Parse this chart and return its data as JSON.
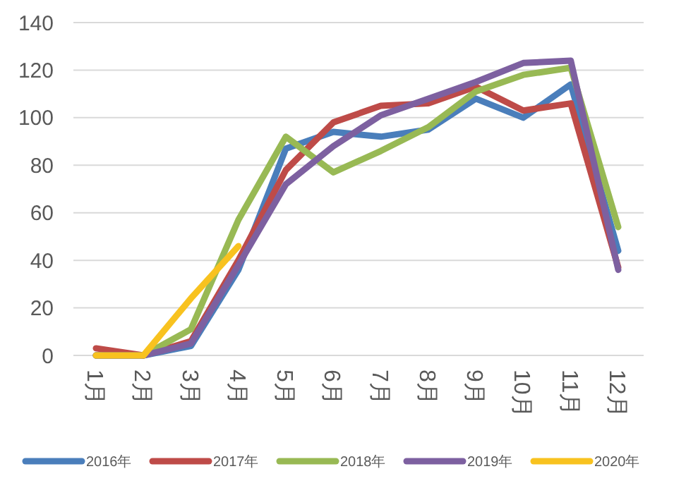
{
  "chart_data": {
    "type": "line",
    "categories": [
      "1月",
      "2月",
      "3月",
      "4月",
      "5月",
      "6月",
      "7月",
      "8月",
      "9月",
      "10月",
      "11月",
      "12月"
    ],
    "series": [
      {
        "name": "2016年",
        "color": "#4a7ebb",
        "values": [
          0,
          0,
          4,
          36,
          87,
          94,
          92,
          95,
          108,
          100,
          114,
          44
        ]
      },
      {
        "name": "2017年",
        "color": "#be4b48",
        "values": [
          3,
          0,
          6,
          40,
          78,
          98,
          105,
          106,
          113,
          103,
          106,
          37
        ]
      },
      {
        "name": "2018年",
        "color": "#98b954",
        "values": [
          0,
          0,
          11,
          57,
          92,
          77,
          86,
          96,
          111,
          118,
          121,
          54
        ]
      },
      {
        "name": "2019年",
        "color": "#7d60a0",
        "values": [
          0,
          0,
          5,
          38,
          72,
          88,
          101,
          108,
          115,
          123,
          124,
          36
        ]
      },
      {
        "name": "2020年",
        "color": "#f8c21f",
        "values": [
          0,
          0,
          24,
          46,
          null,
          null,
          null,
          null,
          null,
          null,
          null,
          null
        ]
      }
    ],
    "ylim": [
      0,
      140
    ],
    "yticks": [
      0,
      20,
      40,
      60,
      80,
      100,
      120,
      140
    ],
    "grid": "y",
    "legend": "bottom",
    "marker": "none",
    "line_style": "solid"
  }
}
